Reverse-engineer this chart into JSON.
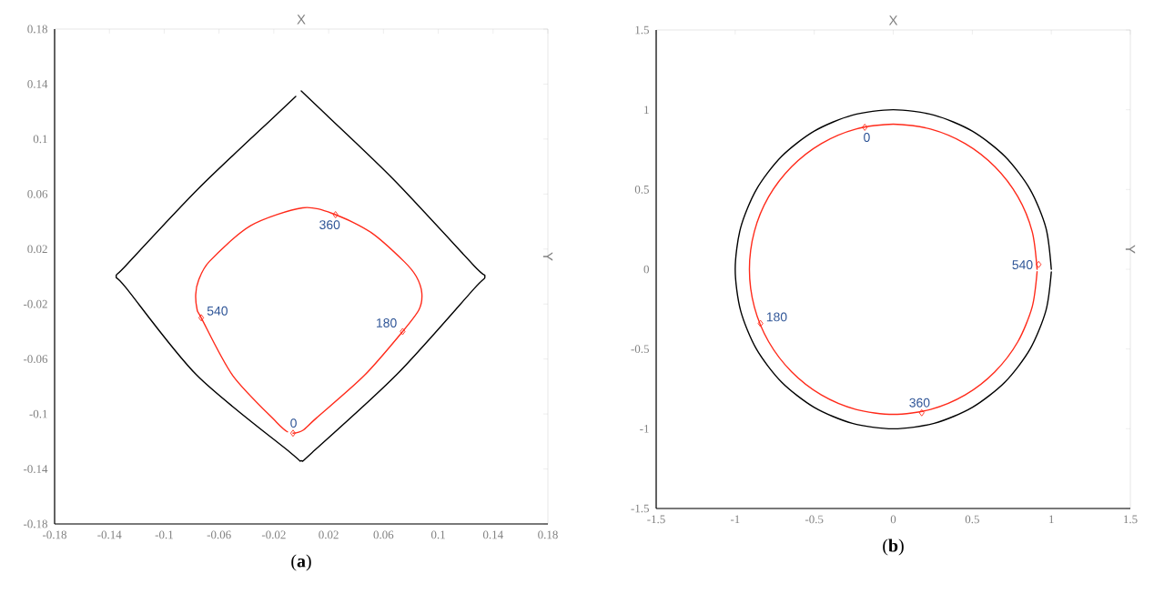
{
  "chart_data": [
    {
      "type": "line",
      "title": "(**a**)",
      "xlabel": "X",
      "ylabel": "Y",
      "xlim": [
        -0.18,
        0.18
      ],
      "ylim": [
        -0.18,
        0.18
      ],
      "xticks": [
        -0.18,
        -0.14,
        -0.1,
        -0.06,
        -0.02,
        0.02,
        0.06,
        0.1,
        0.14,
        0.18
      ],
      "yticks": [
        -0.18,
        -0.14,
        -0.1,
        -0.06,
        -0.02,
        0.02,
        0.06,
        0.1,
        0.14,
        0.18
      ],
      "marker": "none",
      "line_style": "solid",
      "series": [
        {
          "color": "#000000",
          "x": [
            0,
            0.019,
            0.068,
            0.126,
            0.134,
            0.126,
            0.07,
            0.008,
            0,
            -0.008,
            -0.076,
            -0.128,
            -0.135,
            -0.128,
            -0.075,
            -0.02,
            -0.004
          ],
          "values": [
            0.135,
            0.117,
            0.07,
            0.008,
            0,
            -0.009,
            -0.071,
            -0.128,
            -0.134,
            -0.128,
            -0.072,
            -0.008,
            0,
            0.008,
            0.064,
            0.116,
            0.131
          ]
        },
        {
          "color": "#ff2a1a",
          "x": [
            -0.006,
            0.001,
            0.011,
            0.046,
            0.074,
            0.086,
            0.088,
            0.084,
            0.075,
            0.051,
            0.025,
            0.001,
            -0.037,
            -0.067,
            -0.075,
            -0.077,
            -0.076,
            -0.073,
            -0.05,
            -0.018,
            -0.01
          ],
          "values": [
            -0.114,
            -0.112,
            -0.103,
            -0.072,
            -0.04,
            -0.024,
            -0.012,
            0,
            0.011,
            0.032,
            0.045,
            0.05,
            0.037,
            0.011,
            -0.003,
            -0.013,
            -0.024,
            -0.03,
            -0.072,
            -0.106,
            -0.113
          ]
        },
        {
          "type": "scatter",
          "marker": "diamond",
          "color": "#ff2a1a",
          "x": [
            -0.006,
            0.074,
            0.025,
            -0.073
          ],
          "values": [
            -0.114,
            -0.04,
            0.045,
            -0.03
          ]
        }
      ],
      "annotations": [
        {
          "text": "0",
          "x": -0.006,
          "y": -0.114
        },
        {
          "text": "180",
          "x": 0.074,
          "y": -0.04
        },
        {
          "text": "360",
          "x": 0.025,
          "y": 0.045
        },
        {
          "text": "540",
          "x": -0.073,
          "y": -0.03
        }
      ]
    },
    {
      "type": "line",
      "title": "(**b**)",
      "xlabel": "X",
      "ylabel": "Y",
      "xlim": [
        -1.5,
        1.5
      ],
      "ylim": [
        -1.5,
        1.5
      ],
      "xticks": [
        -1.5,
        -1,
        -0.5,
        0,
        0.5,
        1,
        1.5
      ],
      "yticks": [
        -1.5,
        -1,
        -0.5,
        0,
        0.5,
        1,
        1.5
      ],
      "marker": "none",
      "line_style": "solid",
      "series": [
        {
          "color": "#000000",
          "x": [
            1,
            0.966,
            0.866,
            0.707,
            0.5,
            0.259,
            0,
            -0.259,
            -0.5,
            -0.707,
            -0.866,
            -0.966,
            -1,
            -0.966,
            -0.866,
            -0.707,
            -0.5,
            -0.259,
            0,
            0.259,
            0.5,
            0.707,
            0.866,
            0.966,
            1
          ],
          "values": [
            0,
            0.259,
            0.5,
            0.707,
            0.866,
            0.966,
            1,
            0.966,
            0.866,
            0.707,
            0.5,
            0.259,
            0,
            -0.259,
            -0.5,
            -0.707,
            -0.866,
            -0.966,
            -1,
            -0.966,
            -0.866,
            -0.707,
            -0.5,
            -0.259,
            -0.017
          ]
        },
        {
          "color": "#ff2a1a",
          "x": [
            0.91,
            0.879,
            0.788,
            0.643,
            0.455,
            0.236,
            0,
            -0.236,
            -0.455,
            -0.643,
            -0.788,
            -0.879,
            -0.91,
            -0.879,
            -0.788,
            -0.643,
            -0.455,
            -0.236,
            0,
            0.236,
            0.455,
            0.643,
            0.788,
            0.879,
            0.91
          ],
          "values": [
            0,
            0.236,
            0.455,
            0.643,
            0.788,
            0.879,
            0.91,
            0.879,
            0.788,
            0.643,
            0.455,
            0.236,
            0,
            -0.236,
            -0.455,
            -0.643,
            -0.788,
            -0.879,
            -0.91,
            -0.879,
            -0.788,
            -0.643,
            -0.455,
            -0.236,
            -0.016
          ]
        },
        {
          "type": "scatter",
          "marker": "diamond",
          "color": "#ff2a1a",
          "x": [
            -0.18,
            -0.84,
            0.18,
            0.92
          ],
          "values": [
            0.89,
            -0.34,
            -0.9,
            0.03
          ]
        }
      ],
      "annotations": [
        {
          "text": "0",
          "x": -0.18,
          "y": 0.89
        },
        {
          "text": "180",
          "x": -0.84,
          "y": -0.34
        },
        {
          "text": "360",
          "x": 0.18,
          "y": -0.9
        },
        {
          "text": "540",
          "x": 0.92,
          "y": 0.03
        }
      ]
    }
  ]
}
